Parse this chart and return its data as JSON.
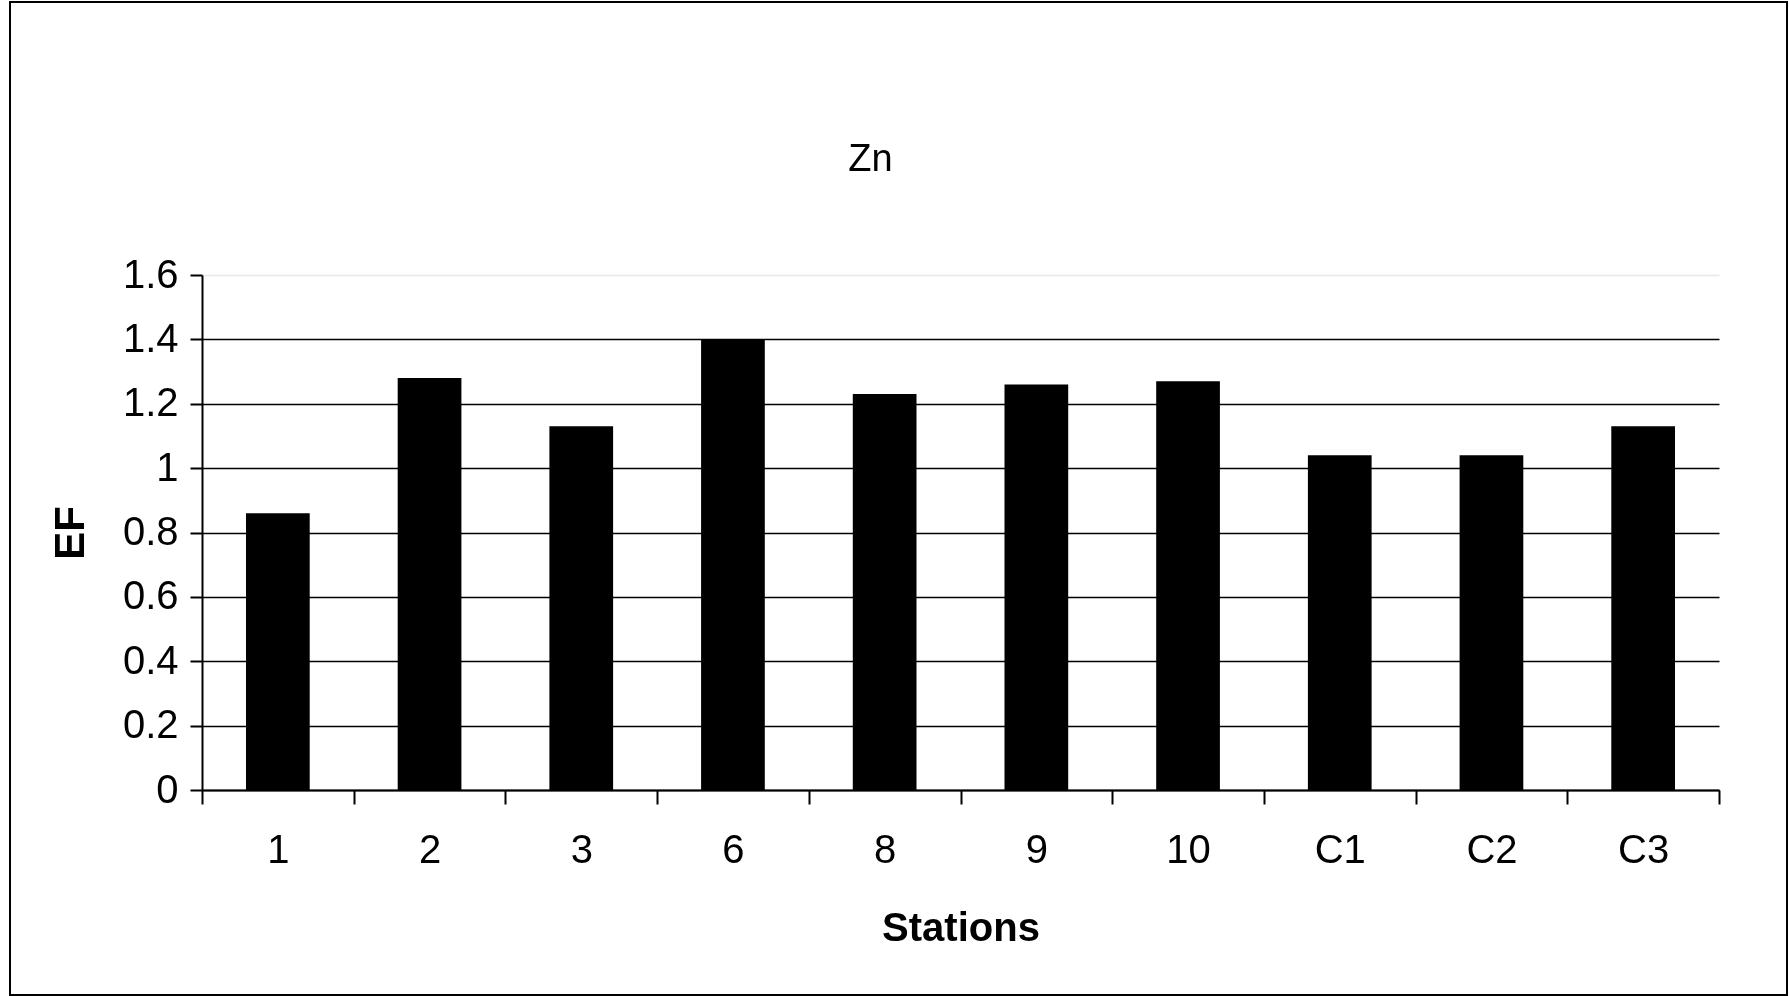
{
  "chart_data": {
    "type": "bar",
    "title": "Zn",
    "xlabel": "Stations",
    "ylabel": "EF",
    "categories": [
      "1",
      "2",
      "3",
      "6",
      "8",
      "9",
      "10",
      "C1",
      "C2",
      "C3"
    ],
    "values": [
      0.86,
      1.28,
      1.13,
      1.4,
      1.23,
      1.26,
      1.27,
      1.04,
      1.04,
      1.13
    ],
    "color": "#000000",
    "ylim": [
      0,
      1.6
    ],
    "yticks": [
      0,
      0.2,
      0.4,
      0.6,
      0.8,
      1,
      1.2,
      1.4,
      1.6
    ],
    "grid": "y"
  }
}
